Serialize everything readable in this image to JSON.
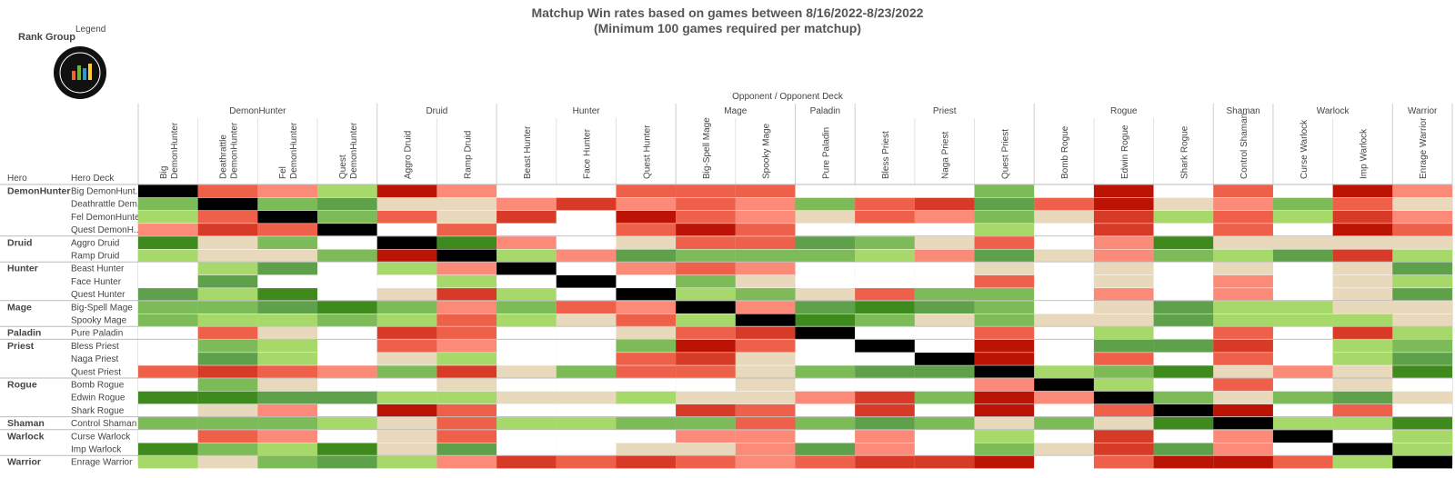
{
  "header": {
    "title_lines": [
      "Matchup Win rates based on games between 8/16/2022-8/23/2022",
      "(Minimum 100 games required per matchup)"
    ],
    "rank_group": "Rank Group",
    "legend": "Legend"
  },
  "axis": {
    "column_title": "Opponent  /  Opponent Deck",
    "row_header": "Hero",
    "row_subheader": "Hero Deck"
  },
  "palette": {
    "k": "#000000",
    "w": "#ffffff",
    "t": "#e8d9bc",
    "a": "#a6d96a",
    "b": "#7cbb57",
    "c": "#5fa04a",
    "d": "#3e8a1c",
    "p": "#fb8a78",
    "q": "#ee6049",
    "r": "#d73b27",
    "s": "#bb1405"
  },
  "column_groups": [
    {
      "name": "DemonHunter",
      "decks": [
        [
          "Big",
          "DemonHunter"
        ],
        [
          "Deathrattle",
          "DemonHunter"
        ],
        [
          "Fel",
          "DemonHunter"
        ],
        [
          "Quest",
          "DemonHunter"
        ]
      ]
    },
    {
      "name": "Druid",
      "decks": [
        [
          "Aggro Druid"
        ],
        [
          "Ramp Druid"
        ]
      ]
    },
    {
      "name": "Hunter",
      "decks": [
        [
          "Beast Hunter"
        ],
        [
          "Face Hunter"
        ],
        [
          "Quest Hunter"
        ]
      ]
    },
    {
      "name": "Mage",
      "decks": [
        [
          "Big-Spell Mage"
        ],
        [
          "Spooky Mage"
        ]
      ]
    },
    {
      "name": "Paladin",
      "decks": [
        [
          "Pure Paladin"
        ]
      ]
    },
    {
      "name": "Priest",
      "decks": [
        [
          "Bless Priest"
        ],
        [
          "Naga Priest"
        ],
        [
          "Quest Priest"
        ]
      ]
    },
    {
      "name": "Rogue",
      "decks": [
        [
          "Bomb Rogue"
        ],
        [
          "Edwin Rogue"
        ],
        [
          "Shark Rogue"
        ]
      ]
    },
    {
      "name": "Shaman",
      "decks": [
        [
          "Control Shaman"
        ]
      ]
    },
    {
      "name": "Warlock",
      "decks": [
        [
          "Curse Warlock"
        ],
        [
          "Imp Warlock"
        ]
      ]
    },
    {
      "name": "Warrior",
      "decks": [
        [
          "Enrage Warrior"
        ]
      ]
    }
  ],
  "row_groups": [
    {
      "name": "DemonHunter",
      "rows": [
        {
          "label": "Big DemonHunt..",
          "cells": [
            "k",
            "q",
            "p",
            "a",
            "s",
            "p",
            "w",
            "w",
            "q",
            "q",
            "q",
            "w",
            "w",
            "w",
            "b",
            "w",
            "s",
            "w",
            "q",
            "w",
            "s",
            "p"
          ]
        },
        {
          "label": "Deathrattle Dem..",
          "cells": [
            "b",
            "k",
            "b",
            "c",
            "t",
            "t",
            "p",
            "r",
            "p",
            "q",
            "p",
            "b",
            "q",
            "r",
            "c",
            "q",
            "s",
            "t",
            "p",
            "b",
            "q",
            "t"
          ]
        },
        {
          "label": "Fel DemonHunter",
          "cells": [
            "a",
            "q",
            "k",
            "b",
            "q",
            "t",
            "r",
            "w",
            "s",
            "q",
            "p",
            "t",
            "q",
            "p",
            "b",
            "t",
            "r",
            "a",
            "q",
            "a",
            "r",
            "p"
          ]
        },
        {
          "label": "Quest DemonH..",
          "cells": [
            "p",
            "r",
            "q",
            "k",
            "w",
            "q",
            "w",
            "w",
            "q",
            "s",
            "q",
            "w",
            "w",
            "w",
            "a",
            "w",
            "r",
            "w",
            "q",
            "w",
            "s",
            "q"
          ]
        }
      ]
    },
    {
      "name": "Druid",
      "rows": [
        {
          "label": "Aggro Druid",
          "cells": [
            "d",
            "t",
            "b",
            "w",
            "k",
            "d",
            "p",
            "w",
            "t",
            "q",
            "q",
            "c",
            "b",
            "t",
            "q",
            "w",
            "p",
            "d",
            "t",
            "t",
            "t",
            "t"
          ]
        },
        {
          "label": "Ramp Druid",
          "cells": [
            "a",
            "t",
            "t",
            "b",
            "s",
            "k",
            "a",
            "p",
            "c",
            "b",
            "b",
            "b",
            "a",
            "p",
            "c",
            "t",
            "p",
            "b",
            "a",
            "c",
            "r",
            "a"
          ]
        }
      ]
    },
    {
      "name": "Hunter",
      "rows": [
        {
          "label": "Beast Hunter",
          "cells": [
            "w",
            "a",
            "c",
            "w",
            "a",
            "p",
            "k",
            "w",
            "p",
            "q",
            "p",
            "w",
            "w",
            "w",
            "t",
            "w",
            "t",
            "w",
            "t",
            "w",
            "t",
            "c"
          ]
        },
        {
          "label": "Face Hunter",
          "cells": [
            "w",
            "c",
            "w",
            "w",
            "w",
            "a",
            "w",
            "k",
            "w",
            "b",
            "t",
            "w",
            "w",
            "w",
            "q",
            "w",
            "t",
            "w",
            "p",
            "w",
            "t",
            "a"
          ]
        },
        {
          "label": "Quest Hunter",
          "cells": [
            "c",
            "a",
            "d",
            "w",
            "t",
            "r",
            "a",
            "w",
            "k",
            "a",
            "b",
            "t",
            "q",
            "b",
            "b",
            "w",
            "p",
            "w",
            "p",
            "w",
            "t",
            "c"
          ]
        }
      ]
    },
    {
      "name": "Mage",
      "rows": [
        {
          "label": "Big-Spell Mage",
          "cells": [
            "b",
            "b",
            "c",
            "d",
            "b",
            "p",
            "b",
            "q",
            "p",
            "k",
            "p",
            "c",
            "d",
            "c",
            "b",
            "w",
            "t",
            "c",
            "a",
            "a",
            "t",
            "t"
          ]
        },
        {
          "label": "Spooky Mage",
          "cells": [
            "b",
            "a",
            "a",
            "b",
            "a",
            "q",
            "a",
            "t",
            "q",
            "a",
            "k",
            "d",
            "b",
            "t",
            "b",
            "t",
            "t",
            "c",
            "a",
            "a",
            "a",
            "t"
          ]
        }
      ]
    },
    {
      "name": "Paladin",
      "rows": [
        {
          "label": "Pure Paladin",
          "cells": [
            "w",
            "q",
            "t",
            "w",
            "r",
            "q",
            "w",
            "w",
            "t",
            "q",
            "r",
            "k",
            "w",
            "w",
            "q",
            "w",
            "a",
            "w",
            "q",
            "w",
            "r",
            "a"
          ]
        }
      ]
    },
    {
      "name": "Priest",
      "rows": [
        {
          "label": "Bless Priest",
          "cells": [
            "w",
            "b",
            "a",
            "w",
            "q",
            "p",
            "w",
            "w",
            "b",
            "s",
            "q",
            "w",
            "k",
            "w",
            "s",
            "w",
            "c",
            "c",
            "r",
            "w",
            "a",
            "b"
          ]
        },
        {
          "label": "Naga Priest",
          "cells": [
            "w",
            "c",
            "a",
            "w",
            "t",
            "a",
            "w",
            "w",
            "q",
            "r",
            "t",
            "w",
            "w",
            "k",
            "s",
            "w",
            "q",
            "w",
            "q",
            "w",
            "a",
            "c"
          ]
        },
        {
          "label": "Quest Priest",
          "cells": [
            "q",
            "r",
            "q",
            "p",
            "b",
            "r",
            "t",
            "b",
            "q",
            "q",
            "t",
            "b",
            "c",
            "c",
            "k",
            "a",
            "b",
            "d",
            "t",
            "p",
            "t",
            "d"
          ]
        }
      ]
    },
    {
      "name": "Rogue",
      "rows": [
        {
          "label": "Bomb Rogue",
          "cells": [
            "w",
            "b",
            "t",
            "w",
            "w",
            "t",
            "w",
            "w",
            "w",
            "w",
            "t",
            "w",
            "w",
            "w",
            "p",
            "k",
            "a",
            "w",
            "q",
            "w",
            "t",
            "w"
          ]
        },
        {
          "label": "Edwin Rogue",
          "cells": [
            "d",
            "d",
            "c",
            "c",
            "a",
            "a",
            "t",
            "t",
            "a",
            "t",
            "t",
            "p",
            "r",
            "b",
            "s",
            "p",
            "k",
            "b",
            "t",
            "b",
            "c",
            "t"
          ]
        },
        {
          "label": "Shark Rogue",
          "cells": [
            "w",
            "t",
            "p",
            "w",
            "s",
            "q",
            "w",
            "w",
            "w",
            "r",
            "q",
            "w",
            "r",
            "w",
            "s",
            "w",
            "q",
            "k",
            "s",
            "w",
            "q",
            "w"
          ]
        }
      ]
    },
    {
      "name": "Shaman",
      "rows": [
        {
          "label": "Control Shaman",
          "cells": [
            "b",
            "b",
            "b",
            "a",
            "t",
            "q",
            "a",
            "a",
            "b",
            "b",
            "q",
            "b",
            "c",
            "b",
            "t",
            "b",
            "t",
            "d",
            "k",
            "a",
            "a",
            "d"
          ]
        }
      ]
    },
    {
      "name": "Warlock",
      "rows": [
        {
          "label": "Curse Warlock",
          "cells": [
            "w",
            "q",
            "p",
            "w",
            "t",
            "q",
            "w",
            "w",
            "w",
            "p",
            "p",
            "w",
            "p",
            "w",
            "a",
            "w",
            "r",
            "w",
            "p",
            "k",
            "w",
            "a"
          ]
        },
        {
          "label": "Imp Warlock",
          "cells": [
            "d",
            "b",
            "a",
            "d",
            "t",
            "c",
            "w",
            "w",
            "t",
            "t",
            "p",
            "c",
            "p",
            "w",
            "b",
            "t",
            "r",
            "c",
            "p",
            "w",
            "k",
            "a"
          ]
        }
      ]
    },
    {
      "name": "Warrior",
      "rows": [
        {
          "label": "Enrage Warrior",
          "cells": [
            "a",
            "t",
            "b",
            "c",
            "a",
            "p",
            "r",
            "q",
            "r",
            "q",
            "p",
            "q",
            "r",
            "r",
            "s",
            "w",
            "q",
            "s",
            "s",
            "q",
            "a",
            "k"
          ]
        }
      ]
    }
  ]
}
